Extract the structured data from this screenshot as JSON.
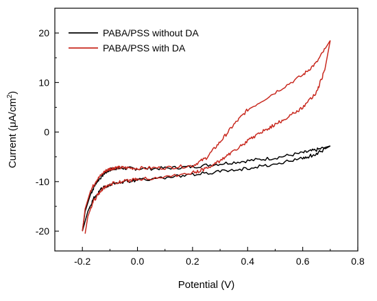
{
  "chart_data": {
    "type": "line",
    "title": "",
    "xlabel": "Potential (V)",
    "ylabel_main": "Current (μA/cm",
    "ylabel_sup": "2",
    "ylabel_tail": ")",
    "xlim": [
      -0.3,
      0.8
    ],
    "ylim": [
      -24,
      25
    ],
    "x_ticks": [
      -0.2,
      0.0,
      0.2,
      0.4,
      0.6,
      0.8
    ],
    "x_tick_labels": [
      "-0.2",
      "0.0",
      "0.2",
      "0.4",
      "0.6",
      "0.8"
    ],
    "y_ticks": [
      -20,
      -10,
      0,
      10,
      20
    ],
    "y_tick_labels": [
      "-20",
      "-10",
      "0",
      "10",
      "20"
    ],
    "grid": false,
    "legend_position": "top-left",
    "series": [
      {
        "name": "PABA/PSS without DA",
        "color": "#000000",
        "forward": {
          "x": [
            -0.2,
            -0.19,
            -0.17,
            -0.15,
            -0.12,
            -0.1,
            -0.08,
            -0.05,
            0.0,
            0.1,
            0.2,
            0.3,
            0.4,
            0.5,
            0.6,
            0.65,
            0.7
          ],
          "y": [
            -20.0,
            -16.0,
            -12.5,
            -10.2,
            -8.3,
            -7.6,
            -7.3,
            -7.3,
            -7.4,
            -7.3,
            -7.0,
            -6.4,
            -5.8,
            -5.2,
            -4.2,
            -3.6,
            -2.8
          ]
        },
        "reverse": {
          "x": [
            0.7,
            0.65,
            0.6,
            0.5,
            0.4,
            0.3,
            0.2,
            0.1,
            0.0,
            -0.05,
            -0.1,
            -0.13,
            -0.16,
            -0.18,
            -0.2
          ],
          "y": [
            -2.8,
            -4.4,
            -5.3,
            -6.4,
            -7.3,
            -8.0,
            -8.6,
            -9.2,
            -9.7,
            -10.0,
            -10.5,
            -11.5,
            -13.5,
            -16.0,
            -20.0
          ]
        }
      },
      {
        "name": "PABA/PSS with DA",
        "color": "#c8281e",
        "forward": {
          "x": [
            -0.2,
            -0.19,
            -0.17,
            -0.15,
            -0.12,
            -0.1,
            -0.08,
            -0.05,
            0.0,
            0.1,
            0.2,
            0.25,
            0.3,
            0.35,
            0.4,
            0.5,
            0.6,
            0.65,
            0.7
          ],
          "y": [
            -20.0,
            -15.5,
            -11.8,
            -9.8,
            -8.0,
            -7.4,
            -7.2,
            -7.2,
            -7.3,
            -7.2,
            -6.8,
            -5.2,
            -2.0,
            1.5,
            4.5,
            8.0,
            11.5,
            14.0,
            18.5
          ]
        },
        "reverse": {
          "x": [
            0.7,
            0.68,
            0.65,
            0.6,
            0.55,
            0.5,
            0.45,
            0.4,
            0.35,
            0.3,
            0.25,
            0.2,
            0.1,
            0.0,
            -0.05,
            -0.1,
            -0.13,
            -0.16,
            -0.18,
            -0.19
          ],
          "y": [
            18.5,
            12.5,
            8.0,
            5.0,
            3.2,
            1.5,
            0.0,
            -1.8,
            -3.8,
            -5.8,
            -7.4,
            -8.2,
            -9.0,
            -9.6,
            -9.9,
            -10.5,
            -11.6,
            -14.0,
            -17.0,
            -20.5
          ]
        }
      }
    ]
  }
}
